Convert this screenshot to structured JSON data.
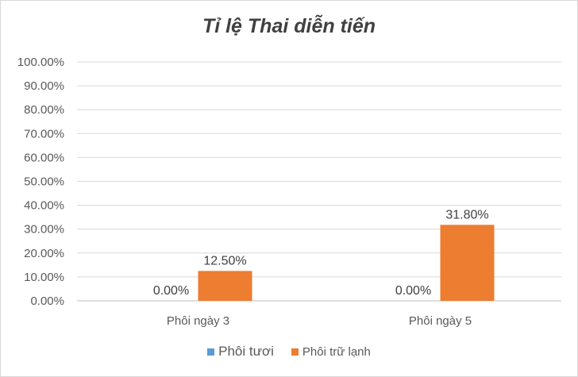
{
  "chart_data": {
    "type": "bar",
    "title": "Tỉ lệ Thai diễn tiến",
    "categories": [
      "Phôi ngày 3",
      "Phôi ngày 5"
    ],
    "series": [
      {
        "name": "Phôi tươi",
        "values": [
          0.0,
          0.0
        ],
        "labels": [
          "0.00%",
          "0.00%"
        ],
        "color": "#5b9bd5"
      },
      {
        "name": "Phôi trữ lạnh",
        "values": [
          12.5,
          31.8
        ],
        "labels": [
          "12.50%",
          "31.80%"
        ],
        "color": "#ed7d31"
      }
    ],
    "ylim": [
      0,
      100
    ],
    "yticks": [
      "0.00%",
      "10.00%",
      "20.00%",
      "30.00%",
      "40.00%",
      "50.00%",
      "60.00%",
      "70.00%",
      "80.00%",
      "90.00%",
      "100.00%"
    ],
    "grid": true,
    "legend_position": "bottom",
    "xlabel": "",
    "ylabel": ""
  }
}
